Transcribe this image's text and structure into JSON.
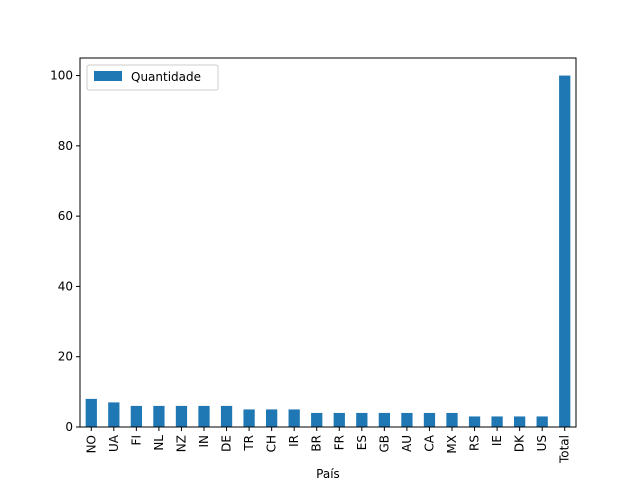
{
  "chart_data": {
    "type": "bar",
    "title": "",
    "xlabel": "País",
    "ylabel": "",
    "categories": [
      "NO",
      "UA",
      "FI",
      "NL",
      "NZ",
      "IN",
      "DE",
      "TR",
      "CH",
      "IR",
      "BR",
      "FR",
      "ES",
      "GB",
      "AU",
      "CA",
      "MX",
      "RS",
      "IE",
      "DK",
      "US",
      "Total"
    ],
    "series": [
      {
        "name": "Quantidade",
        "color": "#1f77b4",
        "values": [
          8,
          7,
          6,
          6,
          6,
          6,
          6,
          5,
          5,
          5,
          4,
          4,
          4,
          4,
          4,
          4,
          4,
          3,
          3,
          3,
          3,
          100
        ]
      }
    ],
    "ylim": [
      0,
      105
    ],
    "yticks": [
      0,
      20,
      40,
      60,
      80,
      100
    ],
    "legend": "top-left",
    "grid": false
  }
}
